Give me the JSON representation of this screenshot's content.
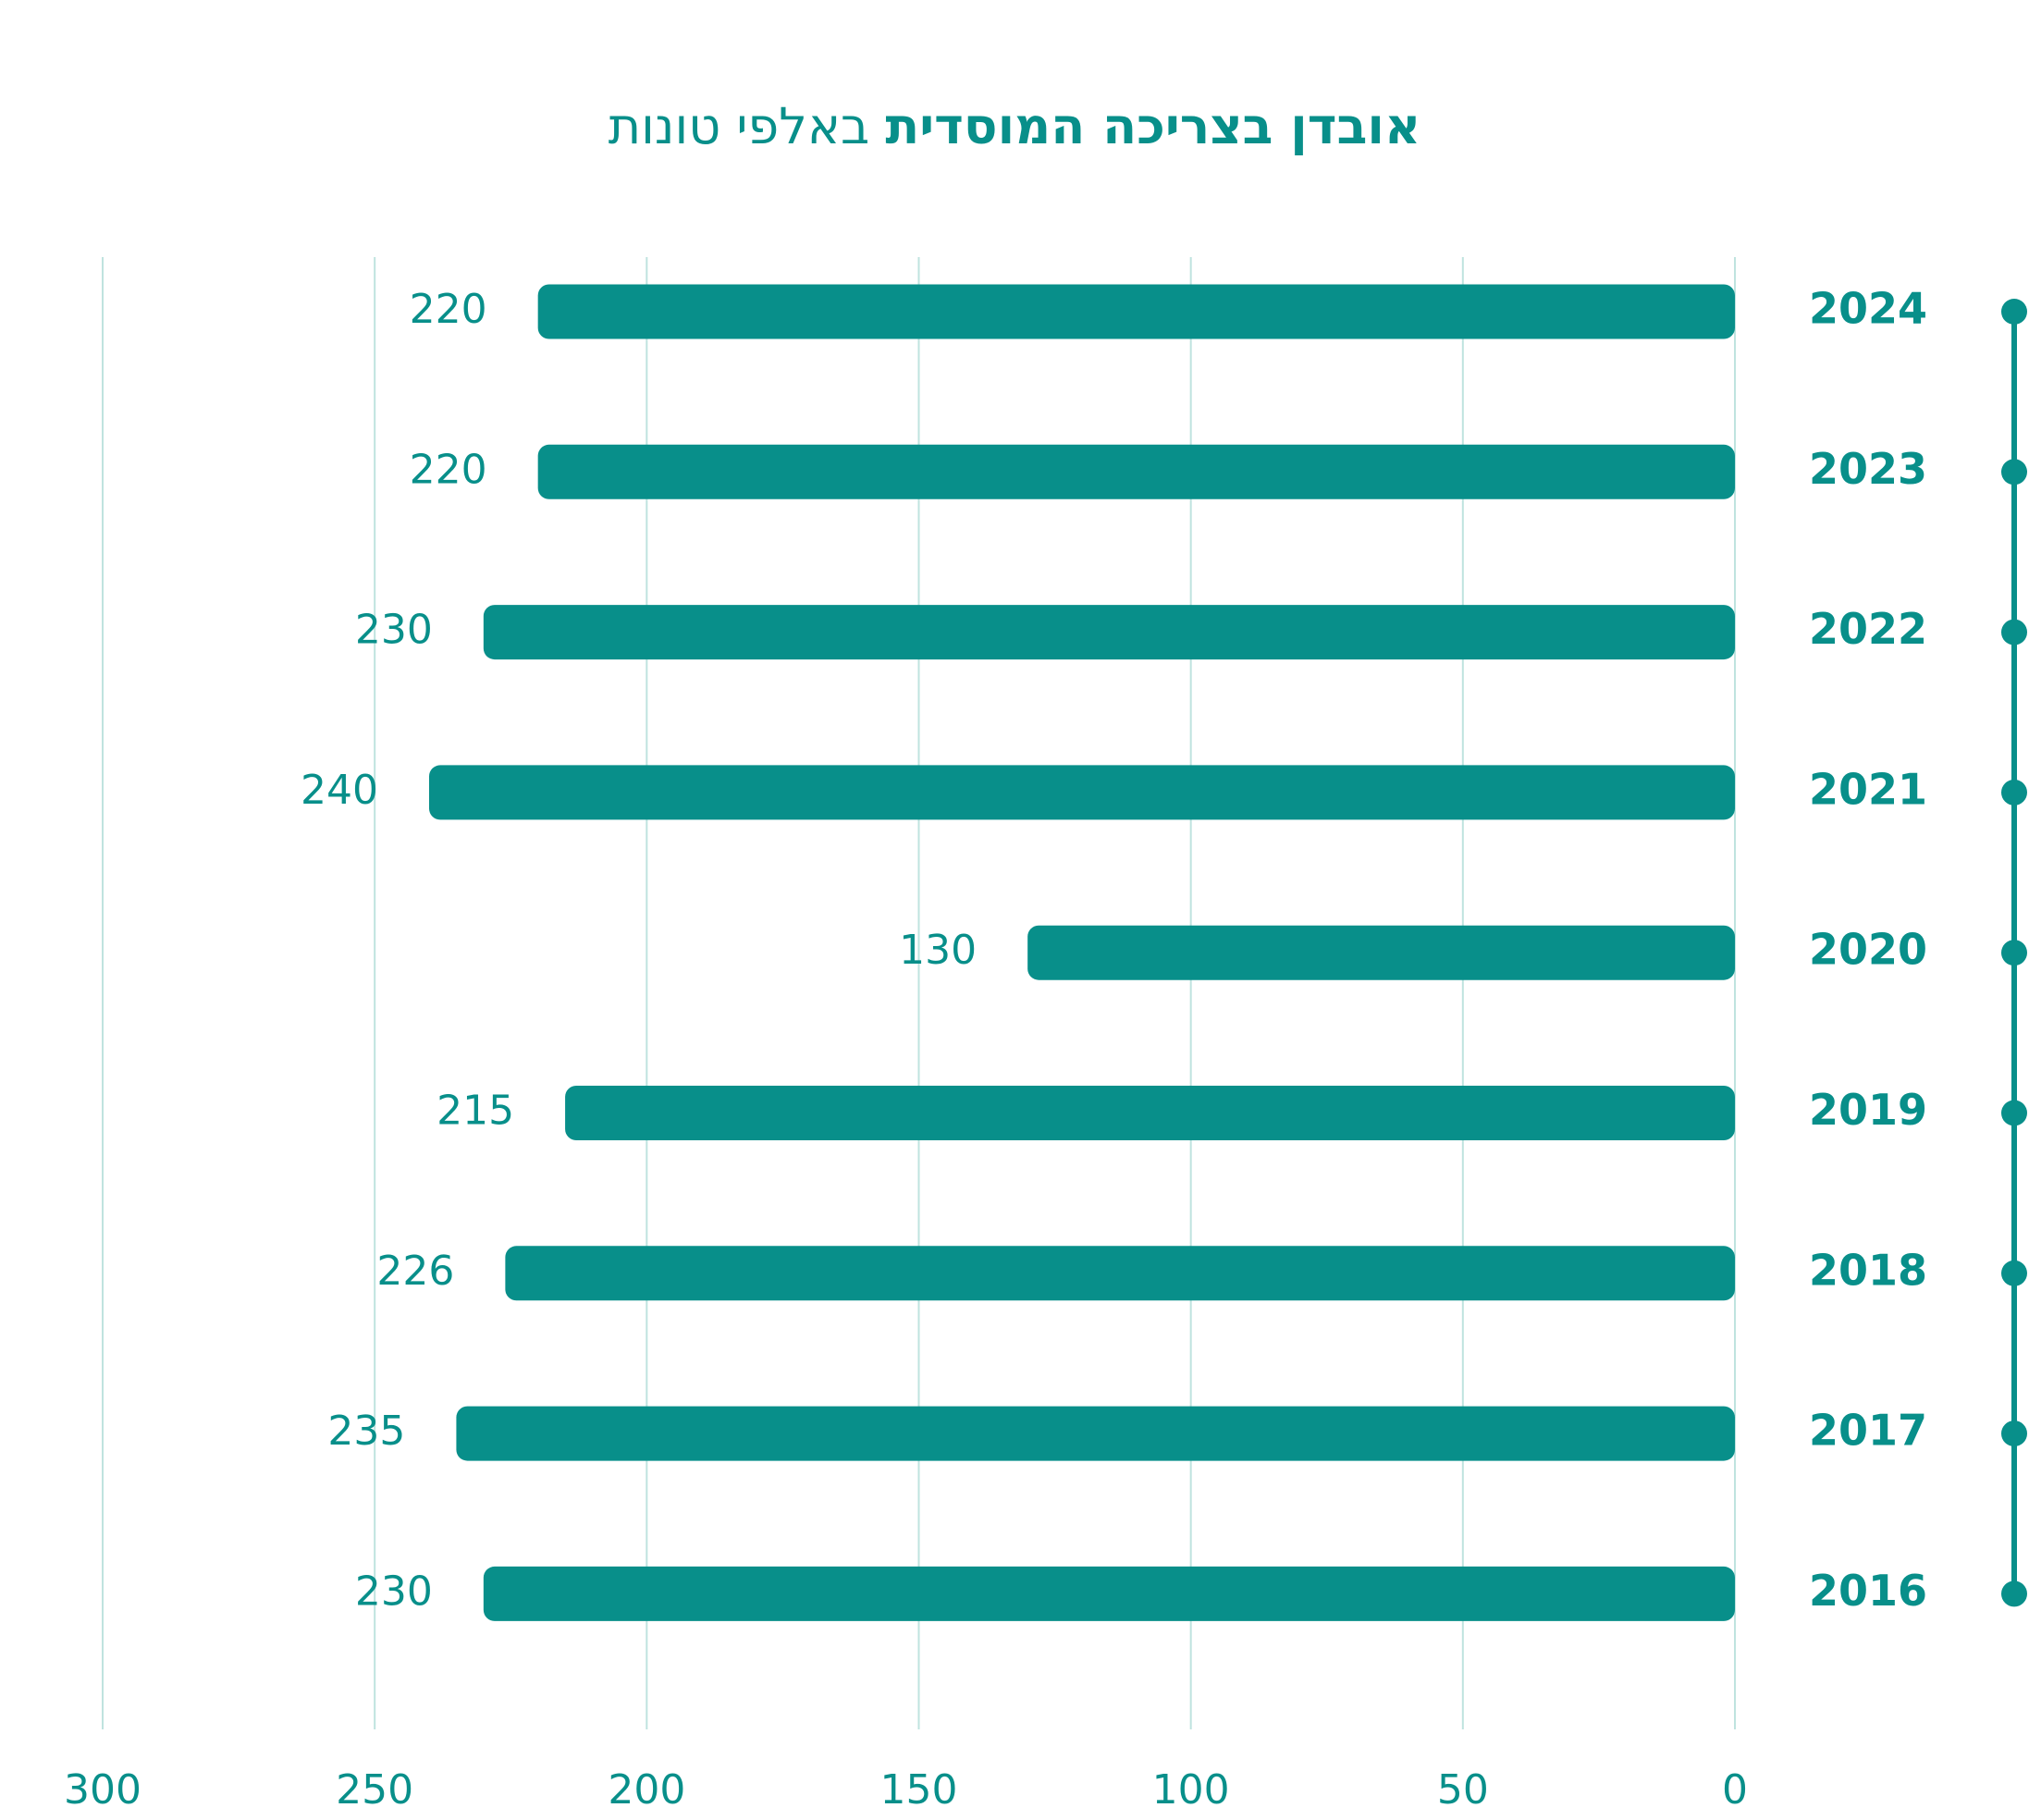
{
  "chart_data": {
    "type": "bar",
    "orientation": "horizontal",
    "x_reversed": true,
    "title": "אובדן בצריכה המוסדית",
    "subtitle": "באלפי טונות",
    "categories": [
      "2024",
      "2023",
      "2022",
      "2021",
      "2020",
      "2019",
      "2018",
      "2017",
      "2016"
    ],
    "values": [
      220,
      220,
      230,
      240,
      130,
      215,
      226,
      235,
      230
    ],
    "color": "#088f8a",
    "xlim": [
      0,
      300
    ],
    "xticks": [
      0,
      50,
      100,
      150,
      200,
      250,
      300
    ],
    "grid": true
  }
}
